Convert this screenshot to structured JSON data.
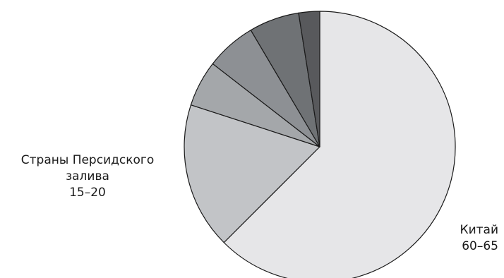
{
  "chart_data": {
    "type": "pie",
    "title": "",
    "start_angle_deg": 0,
    "direction": "clockwise",
    "slices": [
      {
        "label_lines": [
          "Китай",
          "60–65"
        ],
        "value": 62.5,
        "color": "#e6e6e8"
      },
      {
        "label_lines": [
          "Страны Персидского",
          "залива",
          "15–20"
        ],
        "value": 17.5,
        "color": "#c2c4c7"
      },
      {
        "label_lines": [],
        "value": 5.5,
        "color": "#a4a7aa"
      },
      {
        "label_lines": [],
        "value": 6.0,
        "color": "#8d9094"
      },
      {
        "label_lines": [],
        "value": 6.0,
        "color": "#6f7275"
      },
      {
        "label_lines": [],
        "value": 2.5,
        "color": "#58595c"
      }
    ],
    "legend": "none",
    "stroke_color": "#1a1a1a"
  }
}
